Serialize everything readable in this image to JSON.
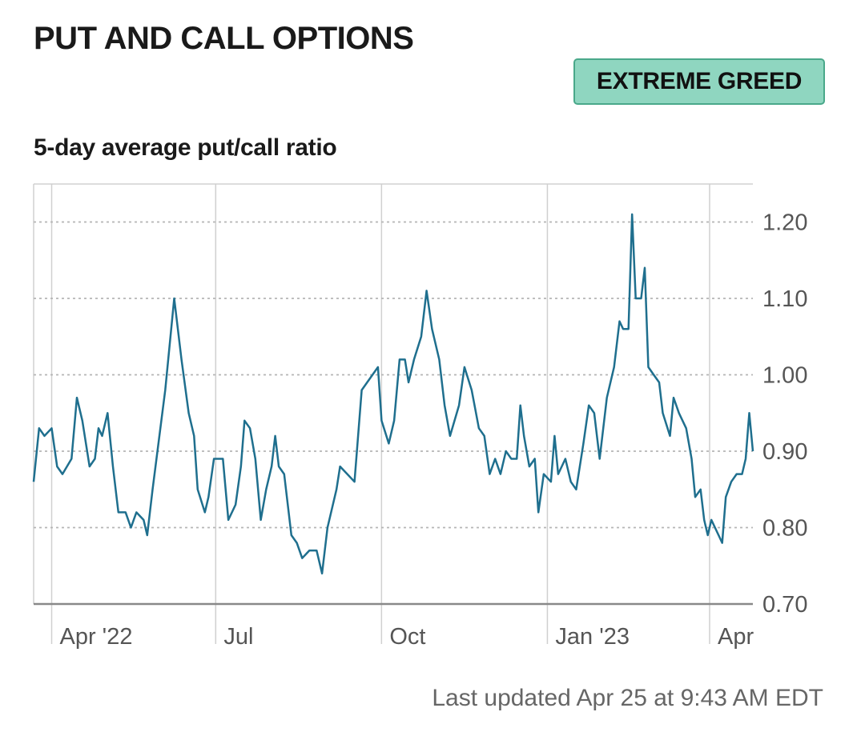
{
  "header": {
    "title": "PUT AND CALL OPTIONS",
    "badge": "EXTREME GREED"
  },
  "footer": {
    "last_updated": "Last updated Apr 25 at 9:43 AM EDT"
  },
  "colors": {
    "line": "#1f6f8e",
    "badge_bg": "#8fd6c0",
    "badge_border": "#4aa88a"
  },
  "chart_data": {
    "type": "line",
    "title": "5-day average put/call ratio",
    "xlabel": "",
    "ylabel": "",
    "x_range": [
      "2022-03-22",
      "2023-04-25"
    ],
    "ylim": [
      0.7,
      1.25
    ],
    "yticks": [
      0.7,
      0.8,
      0.9,
      1.0,
      1.1,
      1.2
    ],
    "ytick_labels": [
      "0.70",
      "0.80",
      "0.90",
      "1.00",
      "1.10",
      "1.20"
    ],
    "xticks": [
      {
        "date": "2022-04-01",
        "label": "Apr '22"
      },
      {
        "date": "2022-07-01",
        "label": "Jul"
      },
      {
        "date": "2022-10-01",
        "label": "Oct"
      },
      {
        "date": "2023-01-01",
        "label": "Jan '23"
      },
      {
        "date": "2023-04-01",
        "label": "Apr"
      }
    ],
    "grid": true,
    "series": [
      {
        "values": [
          [
            "2022-03-22",
            0.86
          ],
          [
            "2022-03-25",
            0.93
          ],
          [
            "2022-03-28",
            0.92
          ],
          [
            "2022-04-01",
            0.93
          ],
          [
            "2022-04-04",
            0.88
          ],
          [
            "2022-04-07",
            0.87
          ],
          [
            "2022-04-12",
            0.89
          ],
          [
            "2022-04-15",
            0.97
          ],
          [
            "2022-04-18",
            0.94
          ],
          [
            "2022-04-22",
            0.88
          ],
          [
            "2022-04-25",
            0.89
          ],
          [
            "2022-04-27",
            0.93
          ],
          [
            "2022-04-29",
            0.92
          ],
          [
            "2022-05-02",
            0.95
          ],
          [
            "2022-05-05",
            0.88
          ],
          [
            "2022-05-08",
            0.82
          ],
          [
            "2022-05-12",
            0.82
          ],
          [
            "2022-05-15",
            0.8
          ],
          [
            "2022-05-18",
            0.82
          ],
          [
            "2022-05-22",
            0.81
          ],
          [
            "2022-05-24",
            0.79
          ],
          [
            "2022-05-27",
            0.85
          ],
          [
            "2022-06-03",
            0.98
          ],
          [
            "2022-06-08",
            1.1
          ],
          [
            "2022-06-12",
            1.02
          ],
          [
            "2022-06-16",
            0.95
          ],
          [
            "2022-06-19",
            0.92
          ],
          [
            "2022-06-21",
            0.85
          ],
          [
            "2022-06-25",
            0.82
          ],
          [
            "2022-06-27",
            0.84
          ],
          [
            "2022-06-30",
            0.89
          ],
          [
            "2022-07-05",
            0.89
          ],
          [
            "2022-07-08",
            0.81
          ],
          [
            "2022-07-12",
            0.83
          ],
          [
            "2022-07-15",
            0.88
          ],
          [
            "2022-07-17",
            0.94
          ],
          [
            "2022-07-20",
            0.93
          ],
          [
            "2022-07-23",
            0.89
          ],
          [
            "2022-07-26",
            0.81
          ],
          [
            "2022-07-29",
            0.85
          ],
          [
            "2022-08-01",
            0.88
          ],
          [
            "2022-08-03",
            0.92
          ],
          [
            "2022-08-05",
            0.88
          ],
          [
            "2022-08-08",
            0.87
          ],
          [
            "2022-08-12",
            0.79
          ],
          [
            "2022-08-15",
            0.78
          ],
          [
            "2022-08-18",
            0.76
          ],
          [
            "2022-08-22",
            0.77
          ],
          [
            "2022-08-26",
            0.77
          ],
          [
            "2022-08-29",
            0.74
          ],
          [
            "2022-09-01",
            0.8
          ],
          [
            "2022-09-06",
            0.85
          ],
          [
            "2022-09-08",
            0.88
          ],
          [
            "2022-09-12",
            0.87
          ],
          [
            "2022-09-16",
            0.86
          ],
          [
            "2022-09-20",
            0.98
          ],
          [
            "2022-09-26",
            1.0
          ],
          [
            "2022-09-29",
            1.01
          ],
          [
            "2022-10-01",
            0.94
          ],
          [
            "2022-10-05",
            0.91
          ],
          [
            "2022-10-08",
            0.94
          ],
          [
            "2022-10-11",
            1.02
          ],
          [
            "2022-10-14",
            1.02
          ],
          [
            "2022-10-16",
            0.99
          ],
          [
            "2022-10-19",
            1.02
          ],
          [
            "2022-10-23",
            1.05
          ],
          [
            "2022-10-26",
            1.11
          ],
          [
            "2022-10-29",
            1.06
          ],
          [
            "2022-11-02",
            1.02
          ],
          [
            "2022-11-05",
            0.96
          ],
          [
            "2022-11-08",
            0.92
          ],
          [
            "2022-11-13",
            0.96
          ],
          [
            "2022-11-16",
            1.01
          ],
          [
            "2022-11-20",
            0.98
          ],
          [
            "2022-11-24",
            0.93
          ],
          [
            "2022-11-27",
            0.92
          ],
          [
            "2022-11-30",
            0.87
          ],
          [
            "2022-12-03",
            0.89
          ],
          [
            "2022-12-06",
            0.87
          ],
          [
            "2022-12-09",
            0.9
          ],
          [
            "2022-12-12",
            0.89
          ],
          [
            "2022-12-15",
            0.89
          ],
          [
            "2022-12-17",
            0.96
          ],
          [
            "2022-12-19",
            0.92
          ],
          [
            "2022-12-22",
            0.88
          ],
          [
            "2022-12-25",
            0.89
          ],
          [
            "2022-12-27",
            0.82
          ],
          [
            "2022-12-30",
            0.87
          ],
          [
            "2023-01-03",
            0.86
          ],
          [
            "2023-01-05",
            0.92
          ],
          [
            "2023-01-07",
            0.87
          ],
          [
            "2023-01-11",
            0.89
          ],
          [
            "2023-01-14",
            0.86
          ],
          [
            "2023-01-17",
            0.85
          ],
          [
            "2023-01-21",
            0.91
          ],
          [
            "2023-01-24",
            0.96
          ],
          [
            "2023-01-27",
            0.95
          ],
          [
            "2023-01-30",
            0.89
          ],
          [
            "2023-02-03",
            0.97
          ],
          [
            "2023-02-07",
            1.01
          ],
          [
            "2023-02-10",
            1.07
          ],
          [
            "2023-02-12",
            1.06
          ],
          [
            "2023-02-15",
            1.06
          ],
          [
            "2023-02-17",
            1.21
          ],
          [
            "2023-02-19",
            1.1
          ],
          [
            "2023-02-22",
            1.1
          ],
          [
            "2023-02-24",
            1.14
          ],
          [
            "2023-02-26",
            1.01
          ],
          [
            "2023-03-01",
            1.0
          ],
          [
            "2023-03-04",
            0.99
          ],
          [
            "2023-03-06",
            0.95
          ],
          [
            "2023-03-10",
            0.92
          ],
          [
            "2023-03-12",
            0.97
          ],
          [
            "2023-03-15",
            0.95
          ],
          [
            "2023-03-19",
            0.93
          ],
          [
            "2023-03-22",
            0.89
          ],
          [
            "2023-03-24",
            0.84
          ],
          [
            "2023-03-27",
            0.85
          ],
          [
            "2023-03-29",
            0.81
          ],
          [
            "2023-03-31",
            0.79
          ],
          [
            "2023-04-02",
            0.81
          ],
          [
            "2023-04-06",
            0.79
          ],
          [
            "2023-04-08",
            0.78
          ],
          [
            "2023-04-10",
            0.84
          ],
          [
            "2023-04-13",
            0.86
          ],
          [
            "2023-04-16",
            0.87
          ],
          [
            "2023-04-19",
            0.87
          ],
          [
            "2023-04-21",
            0.89
          ],
          [
            "2023-04-23",
            0.95
          ],
          [
            "2023-04-25",
            0.9
          ]
        ]
      }
    ]
  }
}
